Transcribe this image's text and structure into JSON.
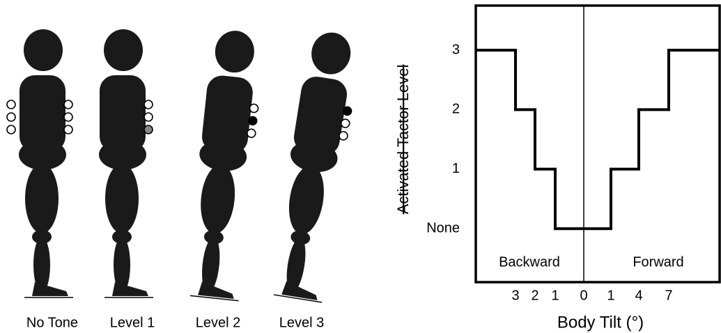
{
  "figures": [
    {
      "label": "No Tone"
    },
    {
      "label": "Level 1"
    },
    {
      "label": "Level 2"
    },
    {
      "label": "Level 3"
    }
  ],
  "chart_data": {
    "type": "line",
    "x_label": "Body Tilt (°)",
    "y_label": "Activated Tactor Level",
    "annotations": [
      "Backward",
      "Forward"
    ],
    "x": [
      -5,
      -3,
      -3,
      -2,
      -2,
      -1,
      -1,
      1,
      1,
      4,
      4,
      7,
      7,
      12
    ],
    "values": [
      3,
      3,
      2,
      2,
      1,
      1,
      0,
      0,
      1,
      1,
      2,
      2,
      3,
      3
    ],
    "color": "#000000",
    "xlim": [
      -5,
      12
    ],
    "xticks": [
      {
        "value": -3,
        "label": "3"
      },
      {
        "value": -2,
        "label": "2"
      },
      {
        "value": -1,
        "label": "1"
      },
      0,
      1,
      4,
      7
    ],
    "ylim": [
      -0.9,
      3.75
    ],
    "yticks": [
      {
        "value": 0,
        "label": "None"
      },
      1,
      2,
      3
    ]
  }
}
